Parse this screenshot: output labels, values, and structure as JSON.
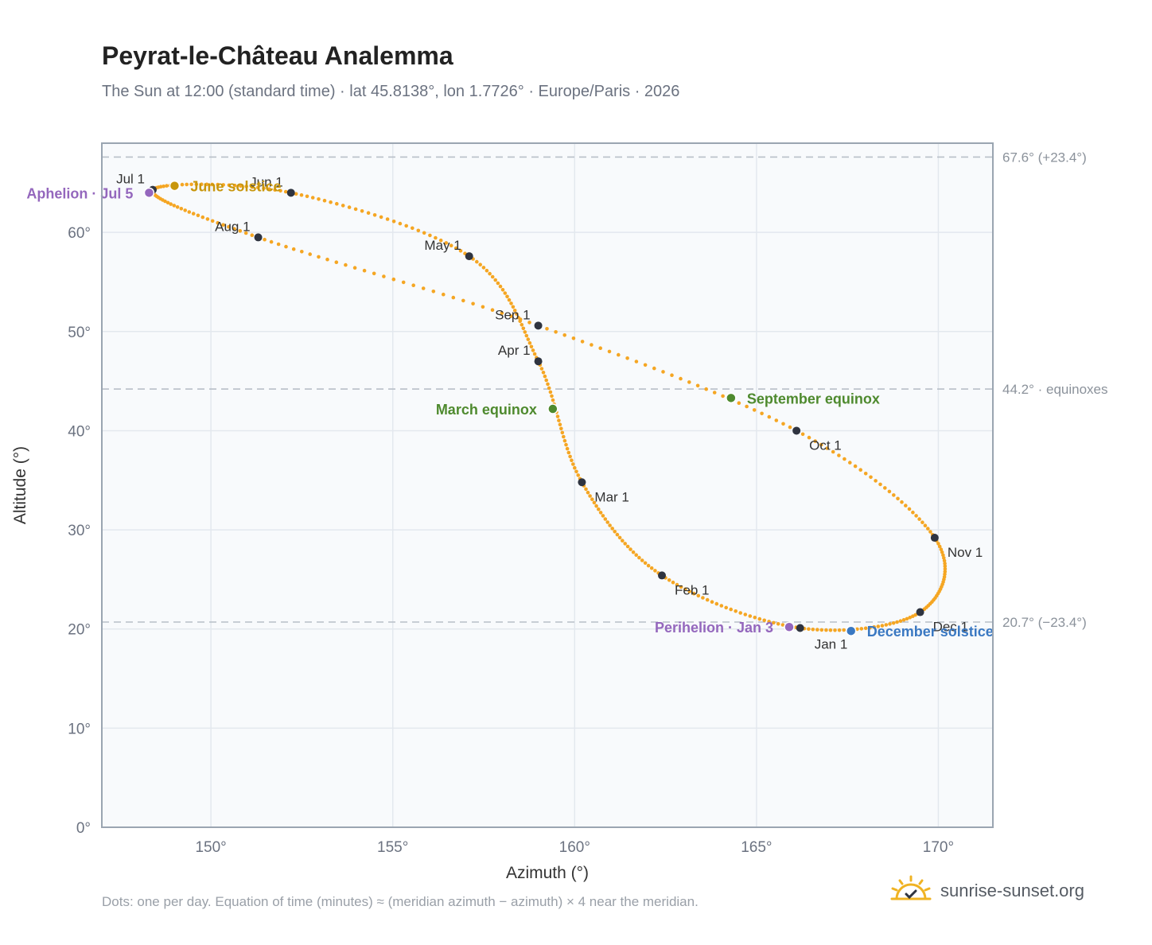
{
  "header": {
    "title": "Peyrat-le-Château Analemma",
    "subtitle": "The Sun at 12:00 (standard time) · lat 45.8138°, lon 1.7726° · Europe/Paris · 2026"
  },
  "footer": {
    "note": "Dots: one per day. Equation of time (minutes) ≈ (meridian azimuth − azimuth) × 4 near the meridian.",
    "brand": "sunrise-sunset.org",
    "brand_icon": "sun-logo-icon"
  },
  "colors": {
    "curve": "#f5a623",
    "month_dot": "#2f3440",
    "solstice_june": "#c8960c",
    "solstice_december": "#3a78c2",
    "equinox": "#4e8a2e",
    "apsis": "#9467bd",
    "plot_bg": "#f8fafc",
    "plot_border": "#9aa5b1",
    "grid": "#e3e8ee",
    "ref_line": "#b8bfc8"
  },
  "chart_data": {
    "type": "scatter",
    "xlabel": "Azimuth (°)",
    "ylabel": "Altitude (°)",
    "xlim": [
      147,
      171.5
    ],
    "ylim": [
      0,
      69
    ],
    "x_ticks": [
      {
        "value": 150,
        "label": "150°"
      },
      {
        "value": 155,
        "label": "155°"
      },
      {
        "value": 160,
        "label": "160°"
      },
      {
        "value": 165,
        "label": "165°"
      },
      {
        "value": 170,
        "label": "170°"
      }
    ],
    "y_ticks": [
      {
        "value": 0,
        "label": "0°"
      },
      {
        "value": 10,
        "label": "10°"
      },
      {
        "value": 20,
        "label": "20°"
      },
      {
        "value": 30,
        "label": "30°"
      },
      {
        "value": 40,
        "label": "40°"
      },
      {
        "value": 50,
        "label": "50°"
      },
      {
        "value": 60,
        "label": "60°"
      }
    ],
    "grid": true,
    "reference_lines": [
      {
        "y": 67.6,
        "label": "67.6° (+23.4°)"
      },
      {
        "y": 44.2,
        "label": "44.2° · equinoxes"
      },
      {
        "y": 20.7,
        "label": "20.7° (−23.4°)"
      }
    ],
    "months": [
      {
        "label": "Jan 1",
        "az": 166.2,
        "alt": 20.1,
        "anchor": "below"
      },
      {
        "label": "Feb 1",
        "az": 162.4,
        "alt": 25.4,
        "anchor": "below-right"
      },
      {
        "label": "Mar 1",
        "az": 160.2,
        "alt": 34.8,
        "anchor": "below-right"
      },
      {
        "label": "Apr 1",
        "az": 159.0,
        "alt": 47.0,
        "anchor": "above-left"
      },
      {
        "label": "May 1",
        "az": 157.1,
        "alt": 57.6,
        "anchor": "above-left"
      },
      {
        "label": "Jun 1",
        "az": 152.2,
        "alt": 64.0,
        "anchor": "above-left"
      },
      {
        "label": "Jul 1",
        "az": 148.4,
        "alt": 64.3,
        "anchor": "above-left"
      },
      {
        "label": "Aug 1",
        "az": 151.3,
        "alt": 59.5,
        "anchor": "above-left"
      },
      {
        "label": "Sep 1",
        "az": 159.0,
        "alt": 50.6,
        "anchor": "above-left"
      },
      {
        "label": "Oct 1",
        "az": 166.1,
        "alt": 40.0,
        "anchor": "below-right"
      },
      {
        "label": "Nov 1",
        "az": 169.9,
        "alt": 29.2,
        "anchor": "below-right"
      },
      {
        "label": "Dec 1",
        "az": 169.5,
        "alt": 21.7,
        "anchor": "below-right"
      }
    ],
    "events": [
      {
        "label": "June solstice",
        "az": 149.0,
        "alt": 64.7,
        "color_key": "solstice_june",
        "anchor": "right"
      },
      {
        "label": "Aphelion · Jul 5",
        "az": 148.3,
        "alt": 64.0,
        "color_key": "apsis",
        "anchor": "left"
      },
      {
        "label": "March equinox",
        "az": 159.4,
        "alt": 42.2,
        "color_key": "equinox",
        "anchor": "left"
      },
      {
        "label": "September equinox",
        "az": 164.3,
        "alt": 43.3,
        "color_key": "equinox",
        "anchor": "right"
      },
      {
        "label": "Perihelion · Jan 3",
        "az": 165.9,
        "alt": 20.2,
        "color_key": "apsis",
        "anchor": "left"
      },
      {
        "label": "December solstice",
        "az": 167.6,
        "alt": 19.8,
        "color_key": "solstice_december",
        "anchor": "right"
      }
    ]
  }
}
